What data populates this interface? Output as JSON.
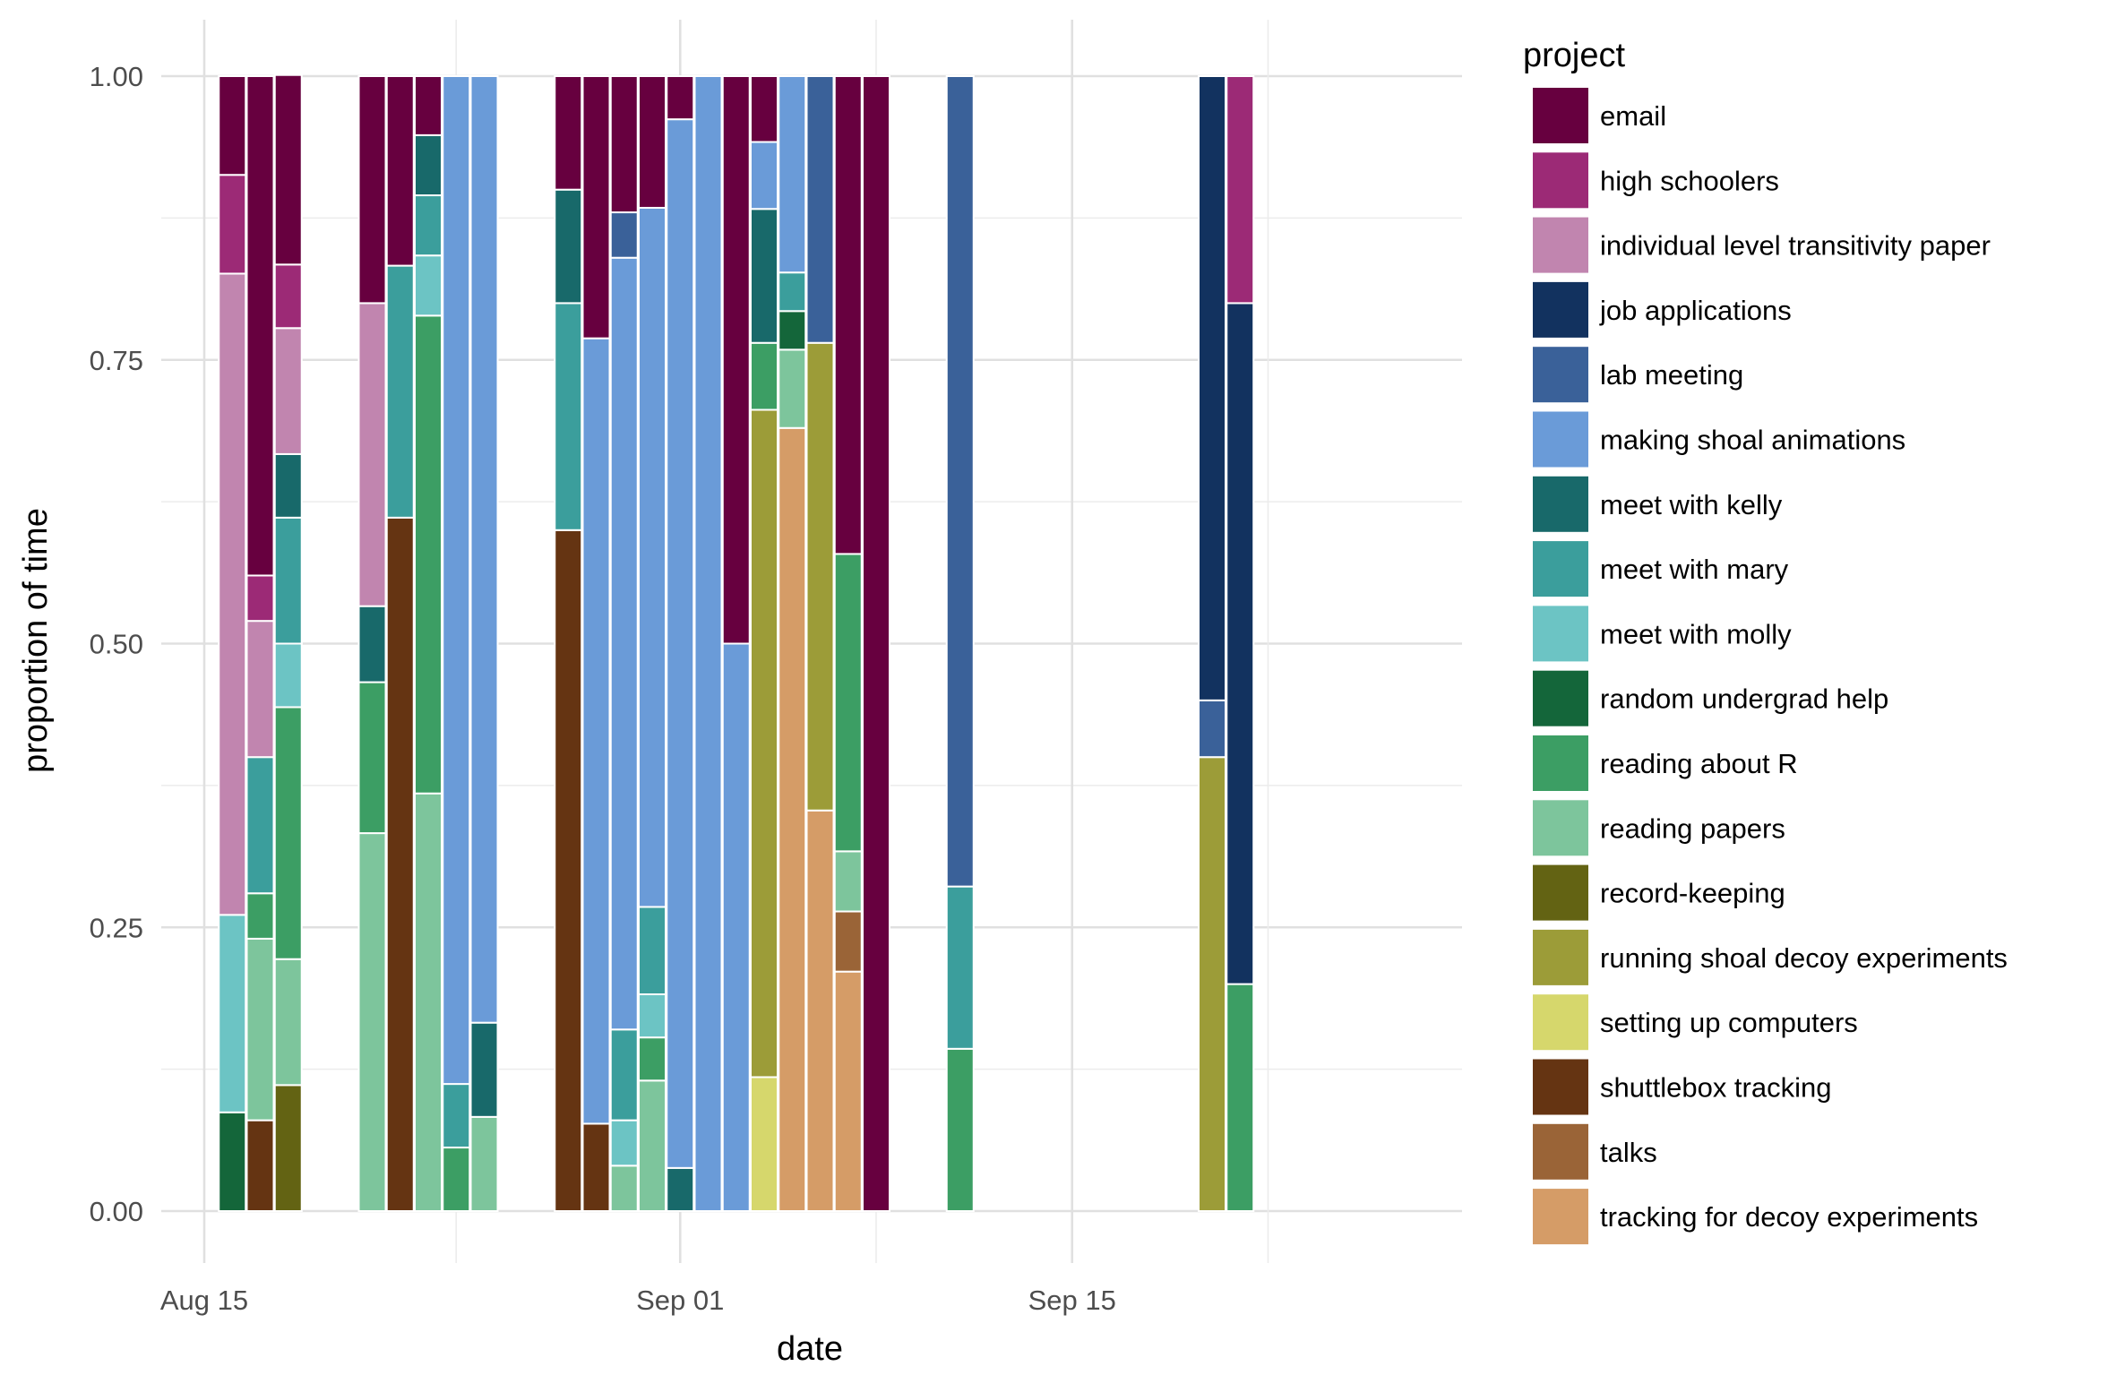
{
  "chart_data": {
    "type": "bar",
    "stacked": true,
    "position": "fill",
    "xlabel": "date",
    "ylabel": "proportion of time",
    "ylim": [
      0,
      1
    ],
    "y_ticks": [
      "0.00",
      "0.25",
      "0.50",
      "0.75",
      "1.00"
    ],
    "x_ticks": [
      "Aug 15",
      "Sep 01",
      "Sep 15"
    ],
    "grid": true,
    "legend": {
      "title": "project",
      "position": "right"
    },
    "series": [
      {
        "name": "email",
        "color": "#67003F"
      },
      {
        "name": "high schoolers",
        "color": "#9C2A76"
      },
      {
        "name": "individual level transitivity paper",
        "color": "#C185AF"
      },
      {
        "name": "job applications",
        "color": "#12325F"
      },
      {
        "name": "lab meeting",
        "color": "#3A6199"
      },
      {
        "name": "making shoal animations",
        "color": "#6A9BD8"
      },
      {
        "name": "meet with kelly",
        "color": "#18696A"
      },
      {
        "name": "meet with mary",
        "color": "#3B9E9C"
      },
      {
        "name": "meet with molly",
        "color": "#6CC4C4"
      },
      {
        "name": "random undergrad help",
        "color": "#14663A"
      },
      {
        "name": "reading about R",
        "color": "#3C9E64"
      },
      {
        "name": "reading papers",
        "color": "#7DC59C"
      },
      {
        "name": "record-keeping",
        "color": "#636313"
      },
      {
        "name": "running shoal decoy experiments",
        "color": "#9C9C38"
      },
      {
        "name": "setting up computers",
        "color": "#D6D76C"
      },
      {
        "name": "shuttlebox tracking",
        "color": "#653412"
      },
      {
        "name": "talks",
        "color": "#9A6437"
      },
      {
        "name": "tracking for decoy experiments",
        "color": "#D59C67"
      }
    ],
    "bars": [
      {
        "date": "2017-08-16",
        "segments": [
          [
            "random undergrad help",
            0.087
          ],
          [
            "meet with molly",
            0.174
          ],
          [
            "individual level transitivity paper",
            0.565
          ],
          [
            "high schoolers",
            0.087
          ],
          [
            "email",
            0.087
          ]
        ]
      },
      {
        "date": "2017-08-17",
        "segments": [
          [
            "shuttlebox tracking",
            0.08
          ],
          [
            "reading papers",
            0.16
          ],
          [
            "reading about R",
            0.04
          ],
          [
            "meet with mary",
            0.12
          ],
          [
            "individual level transitivity paper",
            0.12
          ],
          [
            "high schoolers",
            0.04
          ],
          [
            "email",
            0.44
          ]
        ]
      },
      {
        "date": "2017-08-18",
        "segments": [
          [
            "record-keeping",
            0.111
          ],
          [
            "reading papers",
            0.111
          ],
          [
            "reading about R",
            0.222
          ],
          [
            "meet with molly",
            0.056
          ],
          [
            "meet with mary",
            0.111
          ],
          [
            "meet with kelly",
            0.056
          ],
          [
            "individual level transitivity paper",
            0.111
          ],
          [
            "high schoolers",
            0.056
          ],
          [
            "email",
            0.167
          ]
        ]
      },
      {
        "date": "2017-08-21",
        "segments": [
          [
            "reading papers",
            0.333
          ],
          [
            "reading about R",
            0.133
          ],
          [
            "meet with kelly",
            0.067
          ],
          [
            "individual level transitivity paper",
            0.267
          ],
          [
            "email",
            0.2
          ]
        ]
      },
      {
        "date": "2017-08-22",
        "segments": [
          [
            "shuttlebox tracking",
            0.611
          ],
          [
            "meet with mary",
            0.222
          ],
          [
            "email",
            0.167
          ]
        ]
      },
      {
        "date": "2017-08-23",
        "segments": [
          [
            "reading papers",
            0.368
          ],
          [
            "reading about R",
            0.421
          ],
          [
            "meet with molly",
            0.053
          ],
          [
            "meet with mary",
            0.053
          ],
          [
            "meet with kelly",
            0.053
          ],
          [
            "email",
            0.052
          ]
        ]
      },
      {
        "date": "2017-08-24",
        "segments": [
          [
            "reading about R",
            0.056
          ],
          [
            "meet with mary",
            0.056
          ],
          [
            "making shoal animations",
            0.888
          ]
        ]
      },
      {
        "date": "2017-08-25",
        "segments": [
          [
            "reading papers",
            0.083
          ],
          [
            "meet with kelly",
            0.083
          ],
          [
            "making shoal animations",
            0.834
          ]
        ]
      },
      {
        "date": "2017-08-28",
        "segments": [
          [
            "shuttlebox tracking",
            0.6
          ],
          [
            "meet with mary",
            0.2
          ],
          [
            "meet with kelly",
            0.1
          ],
          [
            "email",
            0.1
          ]
        ]
      },
      {
        "date": "2017-08-29",
        "segments": [
          [
            "shuttlebox tracking",
            0.077
          ],
          [
            "making shoal animations",
            0.692
          ],
          [
            "email",
            0.231
          ]
        ]
      },
      {
        "date": "2017-08-30",
        "segments": [
          [
            "reading papers",
            0.04
          ],
          [
            "meet with molly",
            0.04
          ],
          [
            "meet with mary",
            0.08
          ],
          [
            "making shoal animations",
            0.68
          ],
          [
            "lab meeting",
            0.04
          ],
          [
            "email",
            0.12
          ]
        ]
      },
      {
        "date": "2017-08-31",
        "segments": [
          [
            "reading papers",
            0.115
          ],
          [
            "reading about R",
            0.038
          ],
          [
            "meet with molly",
            0.038
          ],
          [
            "meet with mary",
            0.077
          ],
          [
            "making shoal animations",
            0.616
          ],
          [
            "email",
            0.116
          ]
        ]
      },
      {
        "date": "2017-09-01",
        "segments": [
          [
            "meet with kelly",
            0.038
          ],
          [
            "making shoal animations",
            0.924
          ],
          [
            "email",
            0.038
          ]
        ]
      },
      {
        "date": "2017-09-02",
        "segments": [
          [
            "making shoal animations",
            1.0
          ]
        ]
      },
      {
        "date": "2017-09-03",
        "segments": [
          [
            "making shoal animations",
            0.5
          ],
          [
            "email",
            0.5
          ]
        ]
      },
      {
        "date": "2017-09-04",
        "segments": [
          [
            "setting up computers",
            0.118
          ],
          [
            "running shoal decoy experiments",
            0.588
          ],
          [
            "reading about R",
            0.059
          ],
          [
            "meet with kelly",
            0.118
          ],
          [
            "making shoal animations",
            0.059
          ],
          [
            "email",
            0.058
          ]
        ]
      },
      {
        "date": "2017-09-05",
        "segments": [
          [
            "tracking for decoy experiments",
            0.69
          ],
          [
            "reading papers",
            0.069
          ],
          [
            "random undergrad help",
            0.034
          ],
          [
            "meet with mary",
            0.034
          ],
          [
            "making shoal animations",
            0.173
          ]
        ]
      },
      {
        "date": "2017-09-06",
        "segments": [
          [
            "tracking for decoy experiments",
            0.353
          ],
          [
            "running shoal decoy experiments",
            0.412
          ],
          [
            "lab meeting",
            0.235
          ]
        ]
      },
      {
        "date": "2017-09-07",
        "segments": [
          [
            "tracking for decoy experiments",
            0.211
          ],
          [
            "talks",
            0.053
          ],
          [
            "reading papers",
            0.053
          ],
          [
            "reading about R",
            0.262
          ],
          [
            "email",
            0.421
          ]
        ]
      },
      {
        "date": "2017-09-08",
        "segments": [
          [
            "email",
            1.0
          ]
        ]
      },
      {
        "date": "2017-09-11",
        "segments": [
          [
            "reading about R",
            0.143
          ],
          [
            "meet with mary",
            0.143
          ],
          [
            "lab meeting",
            0.714
          ]
        ]
      },
      {
        "date": "2017-09-20",
        "segments": [
          [
            "running shoal decoy experiments",
            0.4
          ],
          [
            "lab meeting",
            0.05
          ],
          [
            "job applications",
            0.55
          ]
        ]
      },
      {
        "date": "2017-09-21",
        "segments": [
          [
            "reading about R",
            0.2
          ],
          [
            "job applications",
            0.6
          ],
          [
            "high schoolers",
            0.2
          ]
        ]
      }
    ]
  }
}
